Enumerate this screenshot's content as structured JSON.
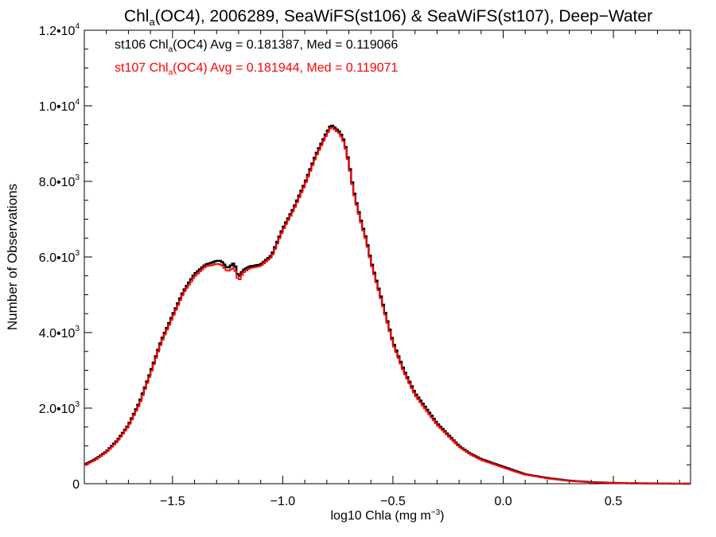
{
  "chart_data": {
    "type": "line",
    "title": {
      "pre": "Chl",
      "sub": "a",
      "post": "(OC4), 2006289, SeaWiFS(st106) & SeaWiFS(st107), Deep−Water"
    },
    "xlabel": {
      "pre": "log10 Chla (mg m",
      "sup": "−3",
      "post": ")"
    },
    "ylabel": "Number of Observations",
    "xlim": [
      -1.9,
      0.85
    ],
    "ylim": [
      0,
      12000
    ],
    "grid": false,
    "step": 0.01,
    "xticks": [
      {
        "v": -1.5,
        "label": "−1.5"
      },
      {
        "v": -1.0,
        "label": "−1.0"
      },
      {
        "v": -0.5,
        "label": "−0.5"
      },
      {
        "v": 0.0,
        "label": "0.0"
      },
      {
        "v": 0.5,
        "label": "0.5"
      }
    ],
    "yticks": [
      {
        "v": 0,
        "mant": "0",
        "exp": ""
      },
      {
        "v": 2000,
        "mant": "2.0•10",
        "exp": "3"
      },
      {
        "v": 4000,
        "mant": "4.0•10",
        "exp": "3"
      },
      {
        "v": 6000,
        "mant": "6.0•10",
        "exp": "3"
      },
      {
        "v": 8000,
        "mant": "8.0•10",
        "exp": "3"
      },
      {
        "v": 10000,
        "mant": "1.0•10",
        "exp": "4"
      },
      {
        "v": 12000,
        "mant": "1.2•10",
        "exp": "4"
      }
    ],
    "annotations": [
      {
        "pre": "st106 Chl",
        "sub": "a",
        "post": "(OC4) Avg = 0.181387, Med = 0.119066",
        "color": "#000000"
      },
      {
        "pre": "st107 Chl",
        "sub": "a",
        "post": "(OC4) Avg = 0.181944, Med = 0.119071",
        "color": "#ff0000"
      }
    ],
    "series": [
      {
        "id": "st106",
        "color": "#000000",
        "x": [
          -1.9,
          -1.85,
          -1.8,
          -1.75,
          -1.7,
          -1.65,
          -1.6,
          -1.55,
          -1.5,
          -1.45,
          -1.4,
          -1.35,
          -1.32,
          -1.3,
          -1.28,
          -1.25,
          -1.22,
          -1.2,
          -1.18,
          -1.15,
          -1.1,
          -1.05,
          -1.0,
          -0.95,
          -0.9,
          -0.85,
          -0.8,
          -0.78,
          -0.76,
          -0.74,
          -0.72,
          -0.7,
          -0.68,
          -0.66,
          -0.64,
          -0.62,
          -0.6,
          -0.55,
          -0.5,
          -0.45,
          -0.4,
          -0.35,
          -0.3,
          -0.25,
          -0.2,
          -0.15,
          -0.1,
          -0.05,
          0.0,
          0.05,
          0.1,
          0.15,
          0.2,
          0.3,
          0.4,
          0.5,
          0.6,
          0.7,
          0.85
        ],
        "y": [
          500,
          650,
          850,
          1150,
          1550,
          2150,
          2950,
          3800,
          4450,
          5100,
          5550,
          5800,
          5850,
          5900,
          5900,
          5700,
          5850,
          5450,
          5650,
          5750,
          5800,
          6050,
          6750,
          7300,
          7950,
          8700,
          9300,
          9500,
          9400,
          9300,
          9050,
          8500,
          7800,
          7300,
          6850,
          6450,
          5900,
          4850,
          3750,
          3000,
          2400,
          2000,
          1600,
          1300,
          1000,
          800,
          650,
          550,
          450,
          350,
          250,
          200,
          150,
          80,
          40,
          20,
          10,
          5,
          0
        ]
      },
      {
        "id": "st107",
        "color": "#ff0000",
        "x": [
          -1.9,
          -1.85,
          -1.8,
          -1.75,
          -1.7,
          -1.65,
          -1.6,
          -1.55,
          -1.5,
          -1.45,
          -1.4,
          -1.35,
          -1.32,
          -1.3,
          -1.28,
          -1.25,
          -1.22,
          -1.2,
          -1.18,
          -1.15,
          -1.1,
          -1.05,
          -1.0,
          -0.95,
          -0.9,
          -0.85,
          -0.8,
          -0.78,
          -0.76,
          -0.74,
          -0.72,
          -0.7,
          -0.68,
          -0.66,
          -0.64,
          -0.62,
          -0.6,
          -0.55,
          -0.5,
          -0.45,
          -0.4,
          -0.35,
          -0.3,
          -0.25,
          -0.2,
          -0.15,
          -0.1,
          -0.05,
          0.0,
          0.05,
          0.1,
          0.15,
          0.2,
          0.3,
          0.4,
          0.5,
          0.6,
          0.7,
          0.85
        ],
        "y": [
          480,
          630,
          830,
          1120,
          1520,
          2100,
          2900,
          3750,
          4400,
          5050,
          5480,
          5750,
          5780,
          5820,
          5800,
          5620,
          5720,
          5350,
          5580,
          5700,
          5760,
          6000,
          6700,
          7250,
          7900,
          8650,
          9250,
          9450,
          9350,
          9250,
          9000,
          8450,
          7750,
          7250,
          6800,
          6400,
          5850,
          4800,
          3700,
          2950,
          2350,
          1950,
          1560,
          1270,
          980,
          780,
          630,
          530,
          430,
          330,
          240,
          190,
          140,
          75,
          38,
          18,
          9,
          4,
          0
        ]
      }
    ]
  }
}
